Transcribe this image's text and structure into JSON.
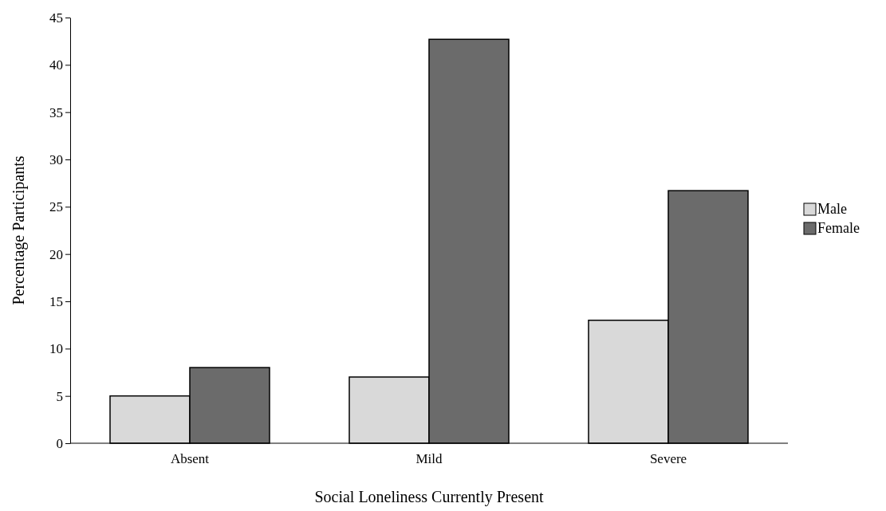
{
  "chart_data": {
    "type": "bar",
    "xlabel": "Social Loneliness Currently Present",
    "ylabel": "Percentage Participants",
    "categories": [
      "Absent",
      "Mild",
      "Severe"
    ],
    "series": [
      {
        "name": "Male",
        "color": "#d9d9d9",
        "values": [
          5,
          7,
          13
        ]
      },
      {
        "name": "Female",
        "color": "#6b6b6b",
        "values": [
          8,
          42.7,
          26.7
        ]
      }
    ],
    "ylim": [
      0,
      45
    ],
    "yticks": [
      0,
      5,
      10,
      15,
      20,
      25,
      30,
      35,
      40,
      45
    ],
    "grid": false,
    "legend": "right"
  }
}
